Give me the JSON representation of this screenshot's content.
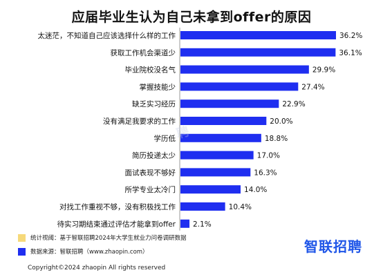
{
  "title": "应届毕业生认为自己未拿到offer的原因",
  "colors": {
    "bar": "#1f2ef0",
    "note_yellow": "#f6d97a",
    "note_blue": "#1f2ef0",
    "logo": "#1f56e8"
  },
  "chart_data": {
    "type": "bar",
    "orientation": "horizontal",
    "categories": [
      "太迷茫，不知道自己应该选择什么样的工作",
      "获取工作机会渠道少",
      "毕业院校没名气",
      "掌握技能少",
      "缺乏实习经历",
      "没有满足我要求的工作",
      "学历低",
      "简历投递太少",
      "面试表现不够好",
      "所学专业太冷门",
      "对找工作重视不够，没有积极找工作",
      "待实习期结束通过评估才能拿到offer"
    ],
    "values": [
      36.2,
      36.1,
      29.9,
      27.4,
      22.9,
      20.0,
      18.8,
      17.0,
      16.3,
      14.0,
      10.4,
      2.1
    ],
    "data_labels": [
      "36.2%",
      "36.1%",
      "29.9%",
      "27.4%",
      "22.9%",
      "20.0%",
      "18.8%",
      "17.0%",
      "16.3%",
      "14.0%",
      "10.4%",
      "2.1%"
    ],
    "xlim": [
      0,
      36.2
    ],
    "unit": "%",
    "grid": false
  },
  "notes": [
    {
      "label": "统计视阈：",
      "text": "基于智联招聘2024年大学生就业力问卷调研数据"
    },
    {
      "label": "数据来源：",
      "text": "智联招聘（www.zhaopin.com）"
    }
  ],
  "logo_text": "智联招聘",
  "copyright": "Copyright©2024 zhaopin All rights reserved"
}
